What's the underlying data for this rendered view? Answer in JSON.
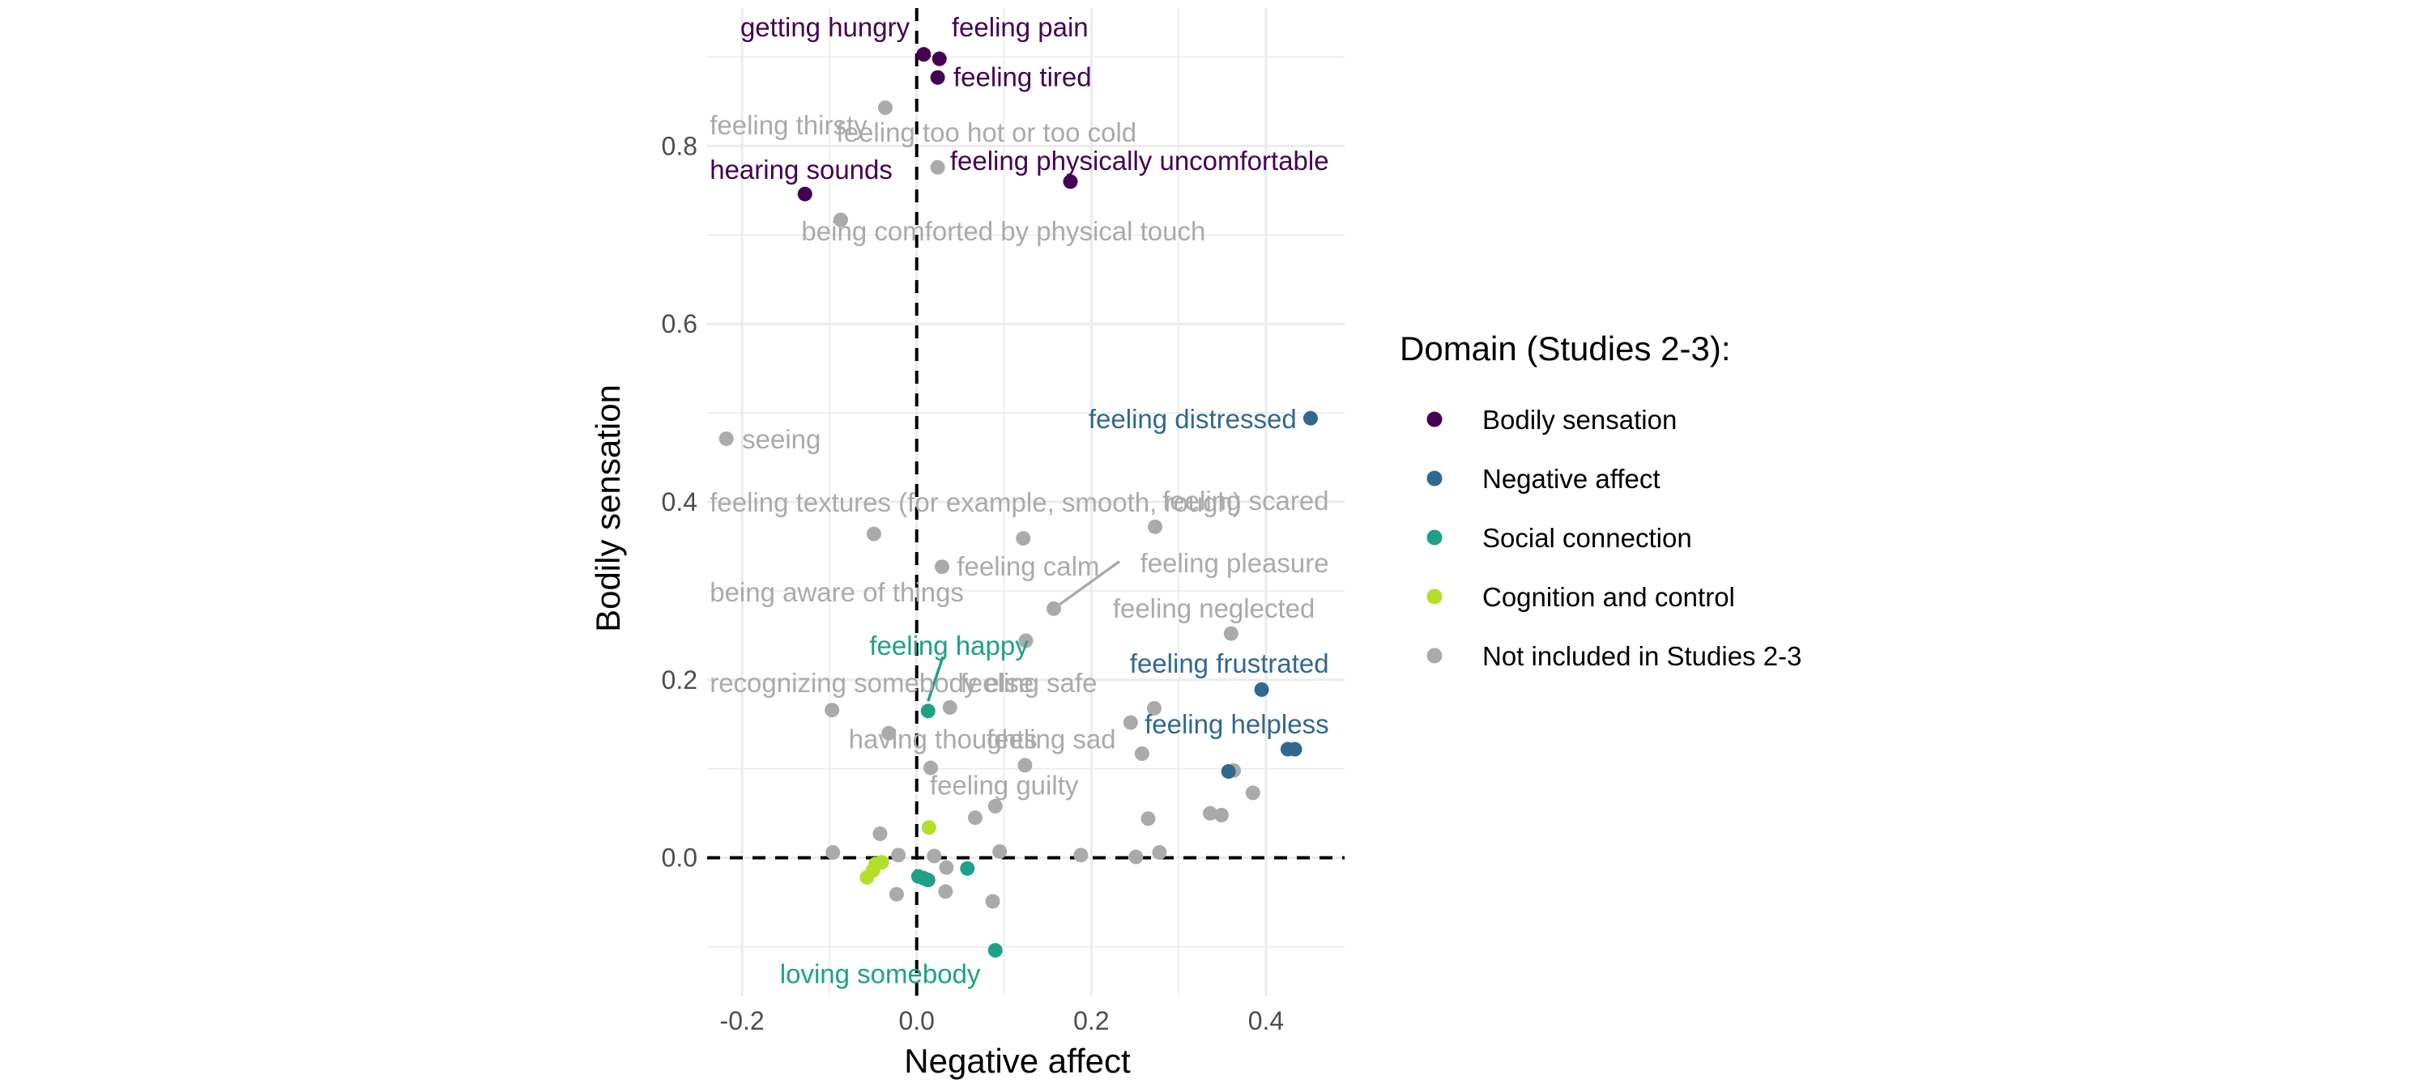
{
  "colors": {
    "Bodily sensation": "#440154",
    "Negative affect": "#31688E",
    "Social connection": "#1FA187",
    "Cognition and control": "#B5DE2B",
    "Not included in Studies 2-3": "#AAAAAA",
    "grid": "#EBEBEB",
    "reference_lines": "#000000"
  },
  "chart_data": {
    "type": "scatter",
    "xlabel": "Negative affect",
    "ylabel": "Bodily sensation",
    "xlim": [
      -0.24,
      0.49
    ],
    "ylim": [
      -0.155,
      0.955
    ],
    "x_ticks": [
      -0.2,
      0.0,
      0.2,
      0.4
    ],
    "x_tick_labels": [
      "-0.2",
      "0.0",
      "0.2",
      "0.4"
    ],
    "y_ticks": [
      0.0,
      0.2,
      0.4,
      0.6,
      0.8
    ],
    "y_tick_labels": [
      "0.0",
      "0.2",
      "0.4",
      "0.6",
      "0.8"
    ],
    "grid": true,
    "reference_lines": {
      "x": 0,
      "y": 0,
      "style": "dashed"
    },
    "legend": {
      "title": "Domain (Studies 2-3):",
      "placement": "right",
      "entries": [
        "Bodily sensation",
        "Negative affect",
        "Social connection",
        "Cognition and control",
        "Not included in Studies 2-3"
      ]
    },
    "points": [
      {
        "x": 0.008,
        "y": 0.903,
        "domain": "Bodily sensation"
      },
      {
        "x": 0.026,
        "y": 0.898,
        "domain": "Bodily sensation"
      },
      {
        "x": 0.024,
        "y": 0.877,
        "domain": "Bodily sensation"
      },
      {
        "x": -0.128,
        "y": 0.746,
        "domain": "Bodily sensation"
      },
      {
        "x": 0.176,
        "y": 0.76,
        "domain": "Bodily sensation"
      },
      {
        "x": 0.451,
        "y": 0.494,
        "domain": "Negative affect"
      },
      {
        "x": 0.395,
        "y": 0.189,
        "domain": "Negative affect"
      },
      {
        "x": 0.357,
        "y": 0.097,
        "domain": "Negative affect"
      },
      {
        "x": 0.425,
        "y": 0.122,
        "domain": "Negative affect"
      },
      {
        "x": 0.433,
        "y": 0.122,
        "domain": "Negative affect"
      },
      {
        "x": 0.013,
        "y": 0.165,
        "domain": "Social connection"
      },
      {
        "x": 0.058,
        "y": -0.012,
        "domain": "Social connection"
      },
      {
        "x": 0.002,
        "y": -0.021,
        "domain": "Social connection"
      },
      {
        "x": 0.008,
        "y": -0.023,
        "domain": "Social connection"
      },
      {
        "x": 0.013,
        "y": -0.025,
        "domain": "Social connection"
      },
      {
        "x": 0.09,
        "y": -0.104,
        "domain": "Social connection"
      },
      {
        "x": 0.014,
        "y": 0.034,
        "domain": "Cognition and control"
      },
      {
        "x": -0.04,
        "y": -0.005,
        "domain": "Cognition and control"
      },
      {
        "x": -0.047,
        "y": -0.007,
        "domain": "Cognition and control"
      },
      {
        "x": -0.05,
        "y": -0.014,
        "domain": "Cognition and control"
      },
      {
        "x": -0.057,
        "y": -0.022,
        "domain": "Cognition and control"
      },
      {
        "x": -0.036,
        "y": 0.843,
        "domain": "Not included in Studies 2-3"
      },
      {
        "x": 0.024,
        "y": 0.776,
        "domain": "Not included in Studies 2-3"
      },
      {
        "x": -0.087,
        "y": 0.717,
        "domain": "Not included in Studies 2-3"
      },
      {
        "x": -0.218,
        "y": 0.471,
        "domain": "Not included in Studies 2-3"
      },
      {
        "x": -0.049,
        "y": 0.364,
        "domain": "Not included in Studies 2-3"
      },
      {
        "x": 0.029,
        "y": 0.327,
        "domain": "Not included in Studies 2-3"
      },
      {
        "x": 0.122,
        "y": 0.359,
        "domain": "Not included in Studies 2-3"
      },
      {
        "x": 0.273,
        "y": 0.372,
        "domain": "Not included in Studies 2-3"
      },
      {
        "x": 0.157,
        "y": 0.28,
        "domain": "Not included in Studies 2-3"
      },
      {
        "x": 0.125,
        "y": 0.244,
        "domain": "Not included in Studies 2-3"
      },
      {
        "x": 0.36,
        "y": 0.252,
        "domain": "Not included in Studies 2-3"
      },
      {
        "x": 0.038,
        "y": 0.169,
        "domain": "Not included in Studies 2-3"
      },
      {
        "x": -0.097,
        "y": 0.166,
        "domain": "Not included in Studies 2-3"
      },
      {
        "x": 0.272,
        "y": 0.168,
        "domain": "Not included in Studies 2-3"
      },
      {
        "x": 0.245,
        "y": 0.152,
        "domain": "Not included in Studies 2-3"
      },
      {
        "x": -0.032,
        "y": 0.14,
        "domain": "Not included in Studies 2-3"
      },
      {
        "x": 0.258,
        "y": 0.117,
        "domain": "Not included in Studies 2-3"
      },
      {
        "x": 0.016,
        "y": 0.101,
        "domain": "Not included in Studies 2-3"
      },
      {
        "x": 0.124,
        "y": 0.104,
        "domain": "Not included in Studies 2-3"
      },
      {
        "x": 0.363,
        "y": 0.098,
        "domain": "Not included in Studies 2-3"
      },
      {
        "x": 0.385,
        "y": 0.073,
        "domain": "Not included in Studies 2-3"
      },
      {
        "x": 0.336,
        "y": 0.05,
        "domain": "Not included in Studies 2-3"
      },
      {
        "x": 0.349,
        "y": 0.048,
        "domain": "Not included in Studies 2-3"
      },
      {
        "x": 0.09,
        "y": 0.058,
        "domain": "Not included in Studies 2-3"
      },
      {
        "x": 0.067,
        "y": 0.045,
        "domain": "Not included in Studies 2-3"
      },
      {
        "x": 0.265,
        "y": 0.044,
        "domain": "Not included in Studies 2-3"
      },
      {
        "x": -0.042,
        "y": 0.027,
        "domain": "Not included in Studies 2-3"
      },
      {
        "x": -0.096,
        "y": 0.006,
        "domain": "Not included in Studies 2-3"
      },
      {
        "x": -0.021,
        "y": 0.003,
        "domain": "Not included in Studies 2-3"
      },
      {
        "x": 0.02,
        "y": 0.002,
        "domain": "Not included in Studies 2-3"
      },
      {
        "x": 0.095,
        "y": 0.007,
        "domain": "Not included in Studies 2-3"
      },
      {
        "x": 0.188,
        "y": 0.003,
        "domain": "Not included in Studies 2-3"
      },
      {
        "x": 0.251,
        "y": 0.001,
        "domain": "Not included in Studies 2-3"
      },
      {
        "x": 0.278,
        "y": 0.006,
        "domain": "Not included in Studies 2-3"
      },
      {
        "x": 0.034,
        "y": -0.011,
        "domain": "Not included in Studies 2-3"
      },
      {
        "x": -0.023,
        "y": -0.041,
        "domain": "Not included in Studies 2-3"
      },
      {
        "x": 0.033,
        "y": -0.038,
        "domain": "Not included in Studies 2-3"
      },
      {
        "x": 0.087,
        "y": -0.049,
        "domain": "Not included in Studies 2-3"
      }
    ],
    "labels": [
      {
        "text": "getting hungry",
        "x": -0.008,
        "y": 0.933,
        "anchor": "end",
        "domain": "Bodily sensation"
      },
      {
        "text": "feeling pain",
        "x": 0.04,
        "y": 0.933,
        "anchor": "start",
        "domain": "Bodily sensation"
      },
      {
        "text": "feeling tired",
        "x": 0.042,
        "y": 0.877,
        "anchor": "start",
        "domain": "Bodily sensation"
      },
      {
        "text": "feeling thirsty",
        "x": -0.237,
        "y": 0.823,
        "anchor": "start",
        "domain": "Not included in Studies 2-3"
      },
      {
        "text": "feeling too hot or too cold",
        "x": -0.092,
        "y": 0.815,
        "anchor": "start",
        "domain": "Not included in Studies 2-3"
      },
      {
        "text": "hearing sounds",
        "x": -0.237,
        "y": 0.773,
        "anchor": "start",
        "domain": "Bodily sensation"
      },
      {
        "text": "feeling physically uncomfortable",
        "x": 0.472,
        "y": 0.783,
        "anchor": "end",
        "domain": "Bodily sensation"
      },
      {
        "text": "being comforted by physical touch",
        "x": -0.132,
        "y": 0.704,
        "anchor": "start",
        "domain": "Not included in Studies 2-3"
      },
      {
        "text": "feeling distressed",
        "x": 0.435,
        "y": 0.493,
        "anchor": "end",
        "domain": "Negative affect"
      },
      {
        "text": "seeing",
        "x": -0.2,
        "y": 0.47,
        "anchor": "start",
        "domain": "Not included in Studies 2-3"
      },
      {
        "text": "feeling textures (for example, smooth, rough)",
        "x": -0.237,
        "y": 0.399,
        "anchor": "start",
        "domain": "Not included in Studies 2-3"
      },
      {
        "text": "feeling scared",
        "x": 0.472,
        "y": 0.401,
        "anchor": "end",
        "domain": "Not included in Studies 2-3"
      },
      {
        "text": "feeling pleasure",
        "x": 0.472,
        "y": 0.331,
        "anchor": "end",
        "domain": "Not included in Studies 2-3"
      },
      {
        "text": "feeling calm",
        "x": 0.046,
        "y": 0.327,
        "anchor": "start",
        "domain": "Not included in Studies 2-3"
      },
      {
        "text": "being aware of things",
        "x": -0.237,
        "y": 0.298,
        "anchor": "start",
        "domain": "Not included in Studies 2-3"
      },
      {
        "text": "feeling neglected",
        "x": 0.456,
        "y": 0.28,
        "anchor": "end",
        "domain": "Not included in Studies 2-3"
      },
      {
        "text": "feeling happy",
        "x": 0.128,
        "y": 0.238,
        "anchor": "end",
        "domain": "Social connection"
      },
      {
        "text": "feeling frustrated",
        "x": 0.472,
        "y": 0.218,
        "anchor": "end",
        "domain": "Negative affect"
      },
      {
        "text": "recognizing somebody else",
        "x": -0.237,
        "y": 0.196,
        "anchor": "start",
        "domain": "Not included in Studies 2-3"
      },
      {
        "text": "feeling safe",
        "x": 0.05,
        "y": 0.196,
        "anchor": "start",
        "domain": "Not included in Studies 2-3"
      },
      {
        "text": "feeling helpless",
        "x": 0.472,
        "y": 0.15,
        "anchor": "end",
        "domain": "Negative affect"
      },
      {
        "text": "having thoughts",
        "x": -0.078,
        "y": 0.133,
        "anchor": "start",
        "domain": "Not included in Studies 2-3"
      },
      {
        "text": "feeling sad",
        "x": 0.08,
        "y": 0.133,
        "anchor": "start",
        "domain": "Not included in Studies 2-3"
      },
      {
        "text": "feeling guilty",
        "x": 0.015,
        "y": 0.081,
        "anchor": "start",
        "domain": "Not included in Studies 2-3"
      },
      {
        "text": "loving somebody",
        "x": 0.073,
        "y": -0.131,
        "anchor": "end",
        "domain": "Social connection"
      }
    ],
    "connectors": [
      {
        "x1": 0.157,
        "y1": 0.28,
        "x2": 0.232,
        "y2": 0.333,
        "domain": "Not included in Studies 2-3"
      },
      {
        "x1": 0.013,
        "y1": 0.176,
        "x2": 0.03,
        "y2": 0.226,
        "domain": "Social connection"
      }
    ]
  }
}
